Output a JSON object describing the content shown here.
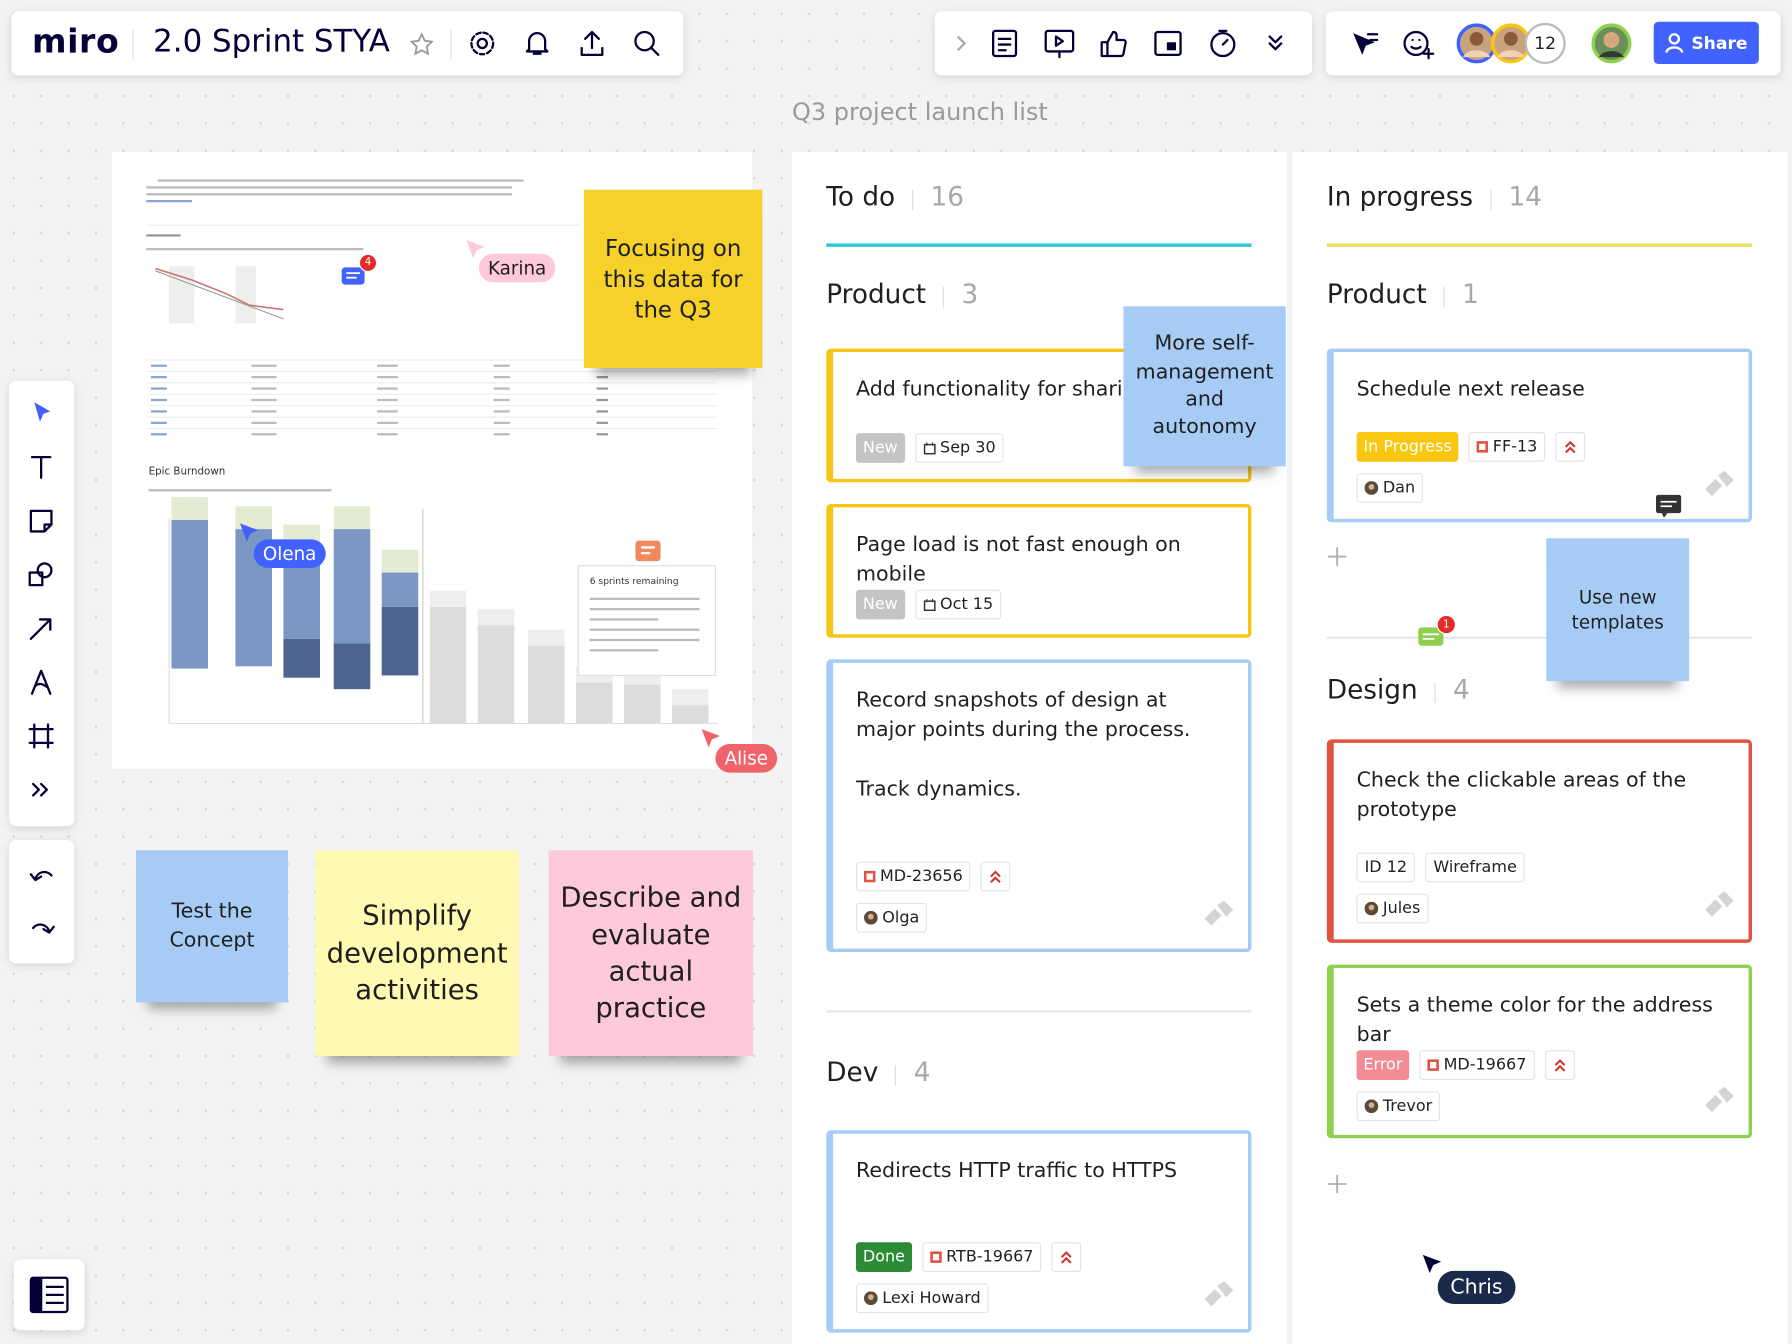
{
  "toolbar": {
    "logo": "miro",
    "board_name": "2.0 Sprint STYA",
    "collaborator_overflow": 12,
    "share_button": "Share"
  },
  "frame_title": "Q3 project launch list",
  "report": {
    "chart_title": "Epic Burndown",
    "forecast": "6 sprints remaining",
    "comment_count": 4
  },
  "stickies": [
    {
      "text": "Focusing on this data for the Q3",
      "color": "#f5d12a"
    },
    {
      "text": "More self-management and autonomy",
      "color": "#a6ccf5"
    },
    {
      "text": "Use new templates",
      "color": "#a6ccf5"
    },
    {
      "text": "Test the Concept",
      "color": "#a6ccf5"
    },
    {
      "text": "Simplify development activities",
      "color": "#fff9b1"
    },
    {
      "text": "Describe and evaluate actual practice",
      "color": "#ffc9dd"
    }
  ],
  "cursors": [
    {
      "name": "Karina",
      "color": "#ffc9dd"
    },
    {
      "name": "Olena",
      "color": "#4262ff"
    },
    {
      "name": "Alise",
      "color": "#f1636a"
    },
    {
      "name": "Chris",
      "color": "#1a2a4a"
    }
  ],
  "board": {
    "comment_count": 1,
    "columns": [
      {
        "title": "To do",
        "count": 16,
        "accent": "#2bc4d8",
        "groups": [
          {
            "title": "Product",
            "count": 3,
            "cards": [
              {
                "title": "Add functionality for sharing",
                "border": "#f5c518",
                "status": "New",
                "status_color": "#c4c4c4",
                "date": "Sep 30"
              },
              {
                "title": "Page load is not fast enough on mobile",
                "border": "#f5c518",
                "status": "New",
                "status_color": "#c4c4c4",
                "date": "Oct 15"
              },
              {
                "title": "Record snapshots of design at major points during the process.",
                "note": "Track dynamics.",
                "border": "#a6ccf5",
                "key": "MD-23656",
                "assignee": "Olga"
              }
            ]
          },
          {
            "title": "Dev",
            "count": 4,
            "cards": [
              {
                "title": "Redirects HTTP traffic to HTTPS",
                "border": "#a6ccf5",
                "status": "Done",
                "status_color": "#2d8a35",
                "key": "RTB-19667",
                "assignee": "Lexi Howard"
              }
            ]
          }
        ]
      },
      {
        "title": "In progress",
        "count": 14,
        "accent": "#e6e35a",
        "groups": [
          {
            "title": "Product",
            "count": 1,
            "cards": [
              {
                "title": "Schedule next release",
                "border": "#a6ccf5",
                "status": "In Progress",
                "status_color": "#fac710",
                "key": "FF-13",
                "assignee": "Dan"
              }
            ]
          },
          {
            "title": "Design",
            "count": 4,
            "cards": [
              {
                "title": "Check the clickable areas of the prototype",
                "border": "#e0533f",
                "tags": [
                  "ID 12",
                  "Wireframe"
                ],
                "assignee": "Jules"
              },
              {
                "title": "Sets a theme color for the address bar",
                "border": "#8fd14f",
                "status": "Error",
                "status_color": "#f28b95",
                "key": "MD-19667",
                "assignee": "Trevor"
              }
            ]
          }
        ]
      }
    ]
  }
}
